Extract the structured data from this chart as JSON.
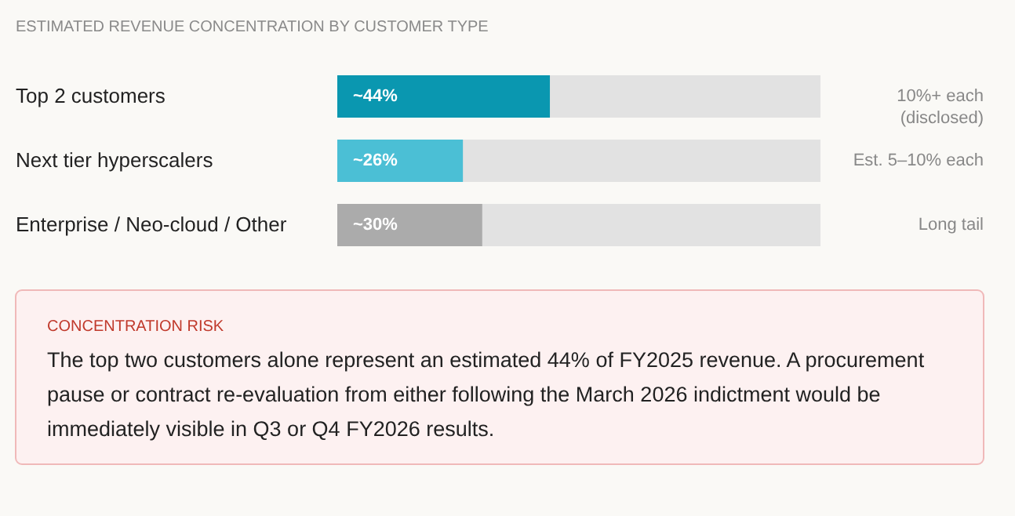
{
  "chart_data": {
    "type": "bar",
    "orientation": "horizontal",
    "title": "ESTIMATED REVENUE CONCENTRATION BY CUSTOMER TYPE",
    "categories": [
      "Top 2 customers",
      "Next tier hyperscalers",
      "Enterprise / Neo-cloud / Other"
    ],
    "values": [
      44,
      26,
      30
    ],
    "colors": [
      "#0a97b0",
      "#4bbfd5",
      "#ababab"
    ],
    "value_labels": [
      "~44%",
      "~26%",
      "~30%"
    ],
    "xlim": [
      0,
      100
    ],
    "tick_labels": "y",
    "annotations": [
      "10%+ each\n(disclosed)",
      "Est. 5–10% each",
      "Long tail",
      "CONCENTRATION RISK",
      "The top two customers alone represent an estimated 44% of FY2025 revenue. A procurement pause or contract re-evaluation from either following the March 2026 indictment would be immediately visible in Q3 or Q4 FY2026 results."
    ]
  }
}
